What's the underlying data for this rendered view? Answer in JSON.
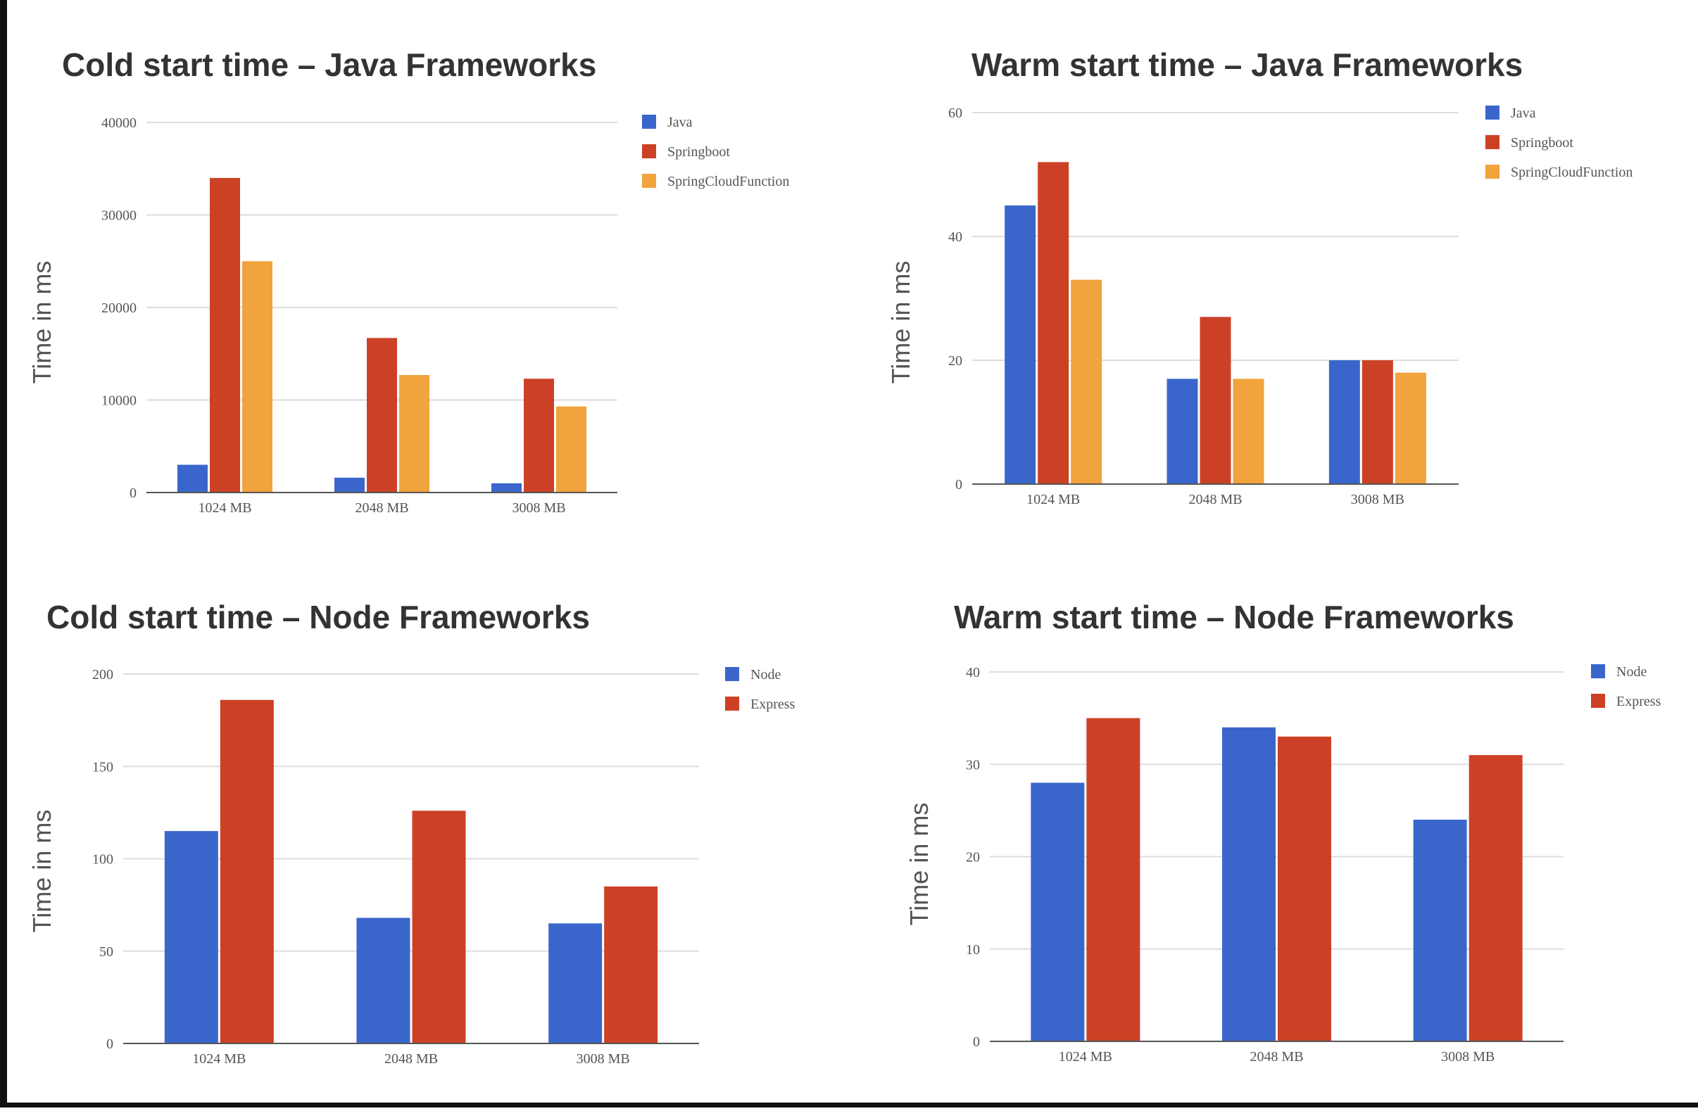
{
  "colors": {
    "java": "#3a66cc",
    "springboot": "#cc4125",
    "springcloudfunction": "#f1a33d",
    "node": "#3a66cc",
    "express": "#cc4125",
    "grid": "#dddddd",
    "axis": "#555555",
    "title": "#333333",
    "label": "#555555"
  },
  "chart_data": [
    {
      "id": "cold-java",
      "type": "bar",
      "title": "Cold start time – Java Frameworks",
      "ylabel": "Time in ms",
      "xlabel": "",
      "categories": [
        "1024 MB",
        "2048 MB",
        "3008 MB"
      ],
      "series": [
        {
          "name": "Java",
          "color": "#3a66cc",
          "values": [
            3000,
            1600,
            1000
          ]
        },
        {
          "name": "Springboot",
          "color": "#cc4125",
          "values": [
            34000,
            16700,
            12300
          ]
        },
        {
          "name": "SpringCloudFunction",
          "color": "#f1a33d",
          "values": [
            25000,
            12700,
            9300
          ]
        }
      ],
      "ylim": [
        0,
        40000
      ],
      "yticks": [
        0,
        10000,
        20000,
        30000,
        40000
      ],
      "grid": true,
      "legend": "top-right"
    },
    {
      "id": "warm-java",
      "type": "bar",
      "title": "Warm start time – Java Frameworks",
      "ylabel": "Time in ms",
      "xlabel": "",
      "categories": [
        "1024 MB",
        "2048 MB",
        "3008 MB"
      ],
      "series": [
        {
          "name": "Java",
          "color": "#3a66cc",
          "values": [
            45,
            17,
            20
          ]
        },
        {
          "name": "Springboot",
          "color": "#cc4125",
          "values": [
            52,
            27,
            20
          ]
        },
        {
          "name": "SpringCloudFunction",
          "color": "#f1a33d",
          "values": [
            33,
            17,
            18
          ]
        }
      ],
      "ylim": [
        0,
        60
      ],
      "yticks": [
        0,
        20,
        40,
        60
      ],
      "grid": true,
      "legend": "top-right"
    },
    {
      "id": "cold-node",
      "type": "bar",
      "title": "Cold start time – Node Frameworks",
      "ylabel": "Time in ms",
      "xlabel": "",
      "categories": [
        "1024 MB",
        "2048 MB",
        "3008 MB"
      ],
      "series": [
        {
          "name": "Node",
          "color": "#3a66cc",
          "values": [
            115,
            68,
            65
          ]
        },
        {
          "name": "Express",
          "color": "#cc4125",
          "values": [
            186,
            126,
            85
          ]
        }
      ],
      "ylim": [
        0,
        200
      ],
      "yticks": [
        0,
        50,
        100,
        150,
        200
      ],
      "grid": true,
      "legend": "top-right"
    },
    {
      "id": "warm-node",
      "type": "bar",
      "title": "Warm start time – Node Frameworks",
      "ylabel": "Time in ms",
      "xlabel": "",
      "categories": [
        "1024 MB",
        "2048 MB",
        "3008 MB"
      ],
      "series": [
        {
          "name": "Node",
          "color": "#3a66cc",
          "values": [
            28,
            34,
            24
          ]
        },
        {
          "name": "Express",
          "color": "#cc4125",
          "values": [
            35,
            33,
            31
          ]
        }
      ],
      "ylim": [
        0,
        40
      ],
      "yticks": [
        0,
        10,
        20,
        30,
        40
      ],
      "grid": true,
      "legend": "top-right"
    }
  ]
}
